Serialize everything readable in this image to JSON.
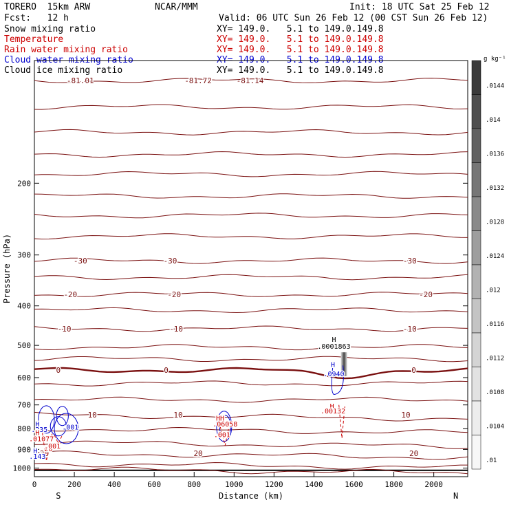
{
  "header": {
    "model": "TORERO  15km ARW",
    "center": "NCAR/MMM",
    "init": "Init: 18 UTC Sat 25 Feb 12",
    "fcst": "Fcst:   12 h",
    "valid": "Valid: 06 UTC Sun 26 Feb 12 (00 CST Sun 26 Feb 12)"
  },
  "legend": [
    {
      "label": "Snow mixing ratio",
      "xy": "XY= 149.0.   5.1 to 149.0.149.8",
      "color": "#000000"
    },
    {
      "label": "Temperature",
      "xy": "XY= 149.0.   5.1 to 149.0.149.8",
      "color": "#cc0000"
    },
    {
      "label": "Rain water mixing ratio",
      "xy": "XY= 149.0.   5.1 to 149.0.149.8",
      "color": "#cc0000"
    },
    {
      "label": "Cloud water mixing ratio",
      "xy": "XY= 149.0.   5.1 to 149.0.149.8",
      "color": "#0000cc"
    },
    {
      "label": "Cloud ice mixing ratio",
      "xy": "XY= 149.0.   5.1 to 149.0.149.8",
      "color": "#000000"
    }
  ],
  "chart_data": {
    "type": "cross-section contour",
    "xlabel": "Distance (km)",
    "ylabel": "Pressure (hPa)",
    "xlim": [
      0,
      2170
    ],
    "ylim": [
      1050,
      100
    ],
    "y_log_scale": true,
    "xticks": [
      "0",
      "200",
      "400",
      "600",
      "800",
      "1000",
      "1200",
      "1400",
      "1600",
      "1800",
      "2000"
    ],
    "yticks": [
      "200",
      "300",
      "400",
      "500",
      "600",
      "700",
      "800",
      "900",
      "1000"
    ],
    "endpoints": {
      "left": "S",
      "right": "N"
    },
    "temperature_contours": [
      {
        "label": "-81.01",
        "p": 112
      },
      {
        "label": "-81.72",
        "p": 112
      },
      {
        "label": "-81.14",
        "p": 112
      },
      {
        "label": "-30",
        "p": 310
      },
      {
        "label": "-20",
        "p": 375
      },
      {
        "label": "-10",
        "p": 455
      },
      {
        "label": "0",
        "p": 575
      },
      {
        "label": "10",
        "p": 740
      },
      {
        "label": "20",
        "p": 920
      }
    ],
    "annotations": [
      {
        "text": "H",
        "color": "#000000",
        "x": 1500,
        "p": 490
      },
      {
        "text": ".0001863",
        "color": "#000000",
        "x": 1500,
        "p": 510
      },
      {
        "text": "H",
        "color": "#0000cc",
        "x": 1495,
        "p": 565
      },
      {
        "text": ".0940",
        "color": "#0000cc",
        "x": 1500,
        "p": 595
      },
      {
        "text": "H",
        "color": "#cc0000",
        "x": 1490,
        "p": 715
      },
      {
        "text": ".00132",
        "color": "#cc0000",
        "x": 1495,
        "p": 735
      },
      {
        "text": "HH",
        "color": "#cc0000",
        "x": 930,
        "p": 765
      },
      {
        "text": ".06058",
        "color": "#cc0000",
        "x": 955,
        "p": 790
      },
      {
        "text": ".001",
        "color": "#cc0000",
        "x": 940,
        "p": 840
      },
      {
        "text": "H",
        "color": "#0000cc",
        "x": 15,
        "p": 790
      },
      {
        "text": ".235",
        "color": "#0000cc",
        "x": 25,
        "p": 815
      },
      {
        "text": ".001",
        "color": "#0000cc",
        "x": 180,
        "p": 805
      },
      {
        "text": "H",
        "color": "#cc0000",
        "x": 15,
        "p": 830
      },
      {
        "text": ".01077",
        "color": "#cc0000",
        "x": 35,
        "p": 860
      },
      {
        "text": "H",
        "color": "#0000cc",
        "x": 5,
        "p": 920
      },
      {
        "text": ".143",
        "color": "#0000cc",
        "x": 15,
        "p": 950
      },
      {
        "text": "20",
        "color": "#cc0000",
        "x": 70,
        "p": 910
      },
      {
        "text": ".001",
        "color": "#cc0000",
        "x": 90,
        "p": 895
      }
    ],
    "colorbar": {
      "unit": "g kg⁻¹",
      "labels": [
        ".0144",
        ".014",
        ".0136",
        ".0132",
        ".0128",
        ".0124",
        ".012",
        ".0116",
        ".0112",
        ".0108",
        ".0104",
        ".01"
      ]
    }
  }
}
